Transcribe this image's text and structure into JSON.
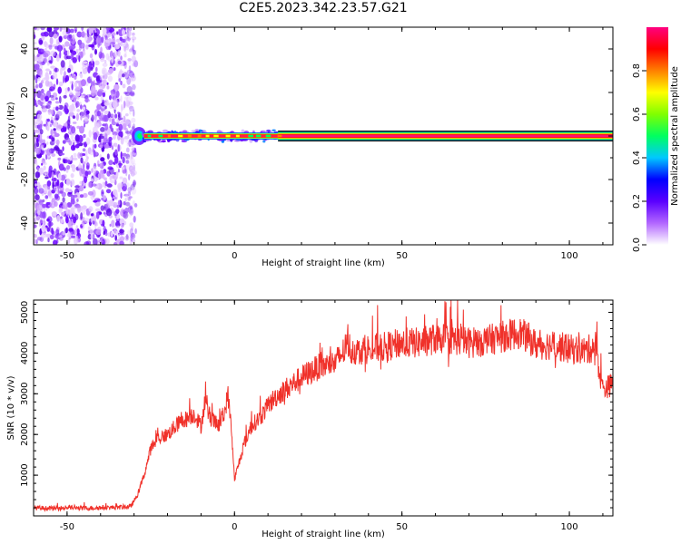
{
  "page_title": "C2E5.2023.342.23.57.G21",
  "chart_data": [
    {
      "type": "heatmap",
      "title": "C2E5.2023.342.23.57.G21",
      "xlabel": "Height of straight line (km)",
      "ylabel": "Frequency (Hz)",
      "xlim": [
        -60,
        113
      ],
      "ylim": [
        -50,
        50
      ],
      "x_ticks": [
        -50,
        0,
        50,
        100
      ],
      "y_ticks": [
        -40,
        -20,
        0,
        20,
        40
      ],
      "colorbar": {
        "label": "Normalized spectral amplitude",
        "range": [
          0.0,
          1.0
        ],
        "ticks": [
          0.0,
          0.2,
          0.4,
          0.6,
          0.8
        ],
        "colors": [
          "#ffffff",
          "#b266ff",
          "#5a00ff",
          "#0000ff",
          "#00c8ff",
          "#00ff60",
          "#80ff00",
          "#ffff00",
          "#ff8000",
          "#ff0000",
          "#ff0080"
        ]
      },
      "regions": [
        {
          "name": "noise",
          "x": [
            -60,
            -30
          ],
          "y": [
            -50,
            50
          ],
          "amplitude": 0.15
        },
        {
          "name": "carrier-onset",
          "x": [
            -30,
            -27
          ],
          "y": [
            -3,
            3
          ],
          "amplitude": 0.5
        },
        {
          "name": "carrier",
          "x": [
            -27,
            113
          ],
          "y": [
            -1,
            1
          ],
          "amplitude": 0.95
        },
        {
          "name": "carrier-sidebands",
          "x": [
            -27,
            13
          ],
          "y": [
            -3,
            3
          ],
          "amplitude": 0.2
        }
      ],
      "grid": false
    },
    {
      "type": "line",
      "xlabel": "Height of straight line (km)",
      "ylabel": "SNR (10 * v/v)",
      "xlim": [
        -60,
        113
      ],
      "ylim": [
        0,
        5300
      ],
      "x_ticks": [
        -50,
        0,
        50,
        100
      ],
      "y_ticks": [
        1000,
        2000,
        3000,
        4000,
        5000
      ],
      "color": "#f0312a",
      "grid": false,
      "series": [
        {
          "x": [
            -60,
            -55,
            -50,
            -45,
            -40,
            -35,
            -31,
            -29,
            -27,
            -25,
            -23,
            -20,
            -17,
            -14,
            -12,
            -10,
            -9,
            -7,
            -5,
            -3,
            -2,
            -1,
            0,
            1,
            3,
            5,
            8,
            10,
            12,
            15,
            20,
            25,
            30,
            34,
            35,
            40,
            45,
            50,
            55,
            60,
            65,
            70,
            75,
            80,
            85,
            88,
            90,
            95,
            100,
            105,
            108,
            109,
            110,
            113
          ],
          "y": [
            200,
            180,
            200,
            190,
            200,
            210,
            230,
            500,
            1000,
            1650,
            1900,
            2000,
            2250,
            2400,
            2500,
            2200,
            2750,
            2400,
            2200,
            2500,
            3000,
            2200,
            900,
            1200,
            1800,
            2200,
            2450,
            2700,
            2900,
            3100,
            3400,
            3650,
            3750,
            4200,
            4050,
            4100,
            4150,
            4250,
            4250,
            4350,
            4350,
            4250,
            4300,
            4400,
            4500,
            4350,
            4200,
            4200,
            4100,
            4050,
            4200,
            3500,
            3100,
            3250
          ]
        }
      ]
    }
  ]
}
